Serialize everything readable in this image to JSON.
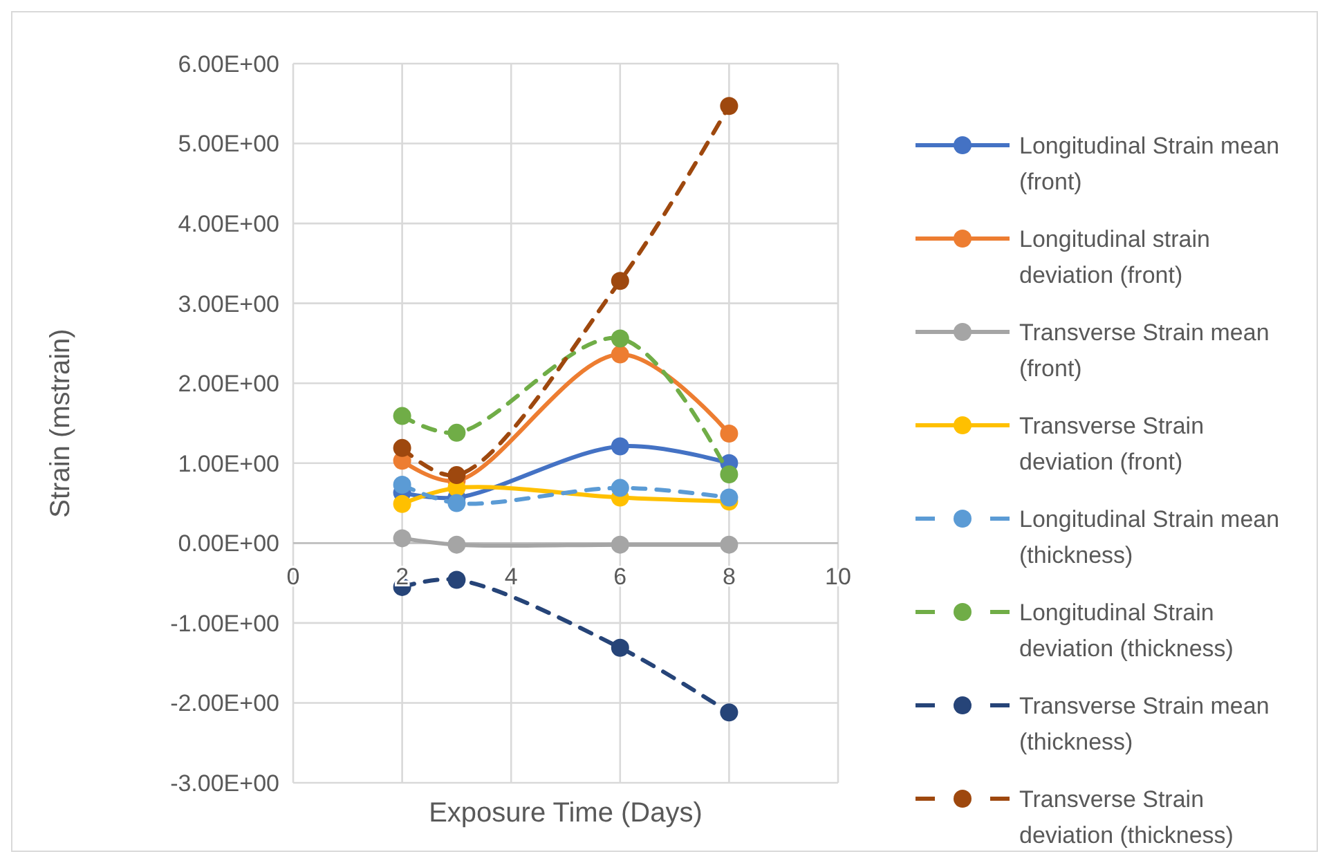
{
  "chart_data": {
    "type": "line",
    "xlabel": "Exposure Time (Days)",
    "ylabel": "Strain (mstrain)",
    "x": [
      2,
      3,
      6,
      8
    ],
    "xlim": [
      0,
      10
    ],
    "xticks": [
      0,
      2,
      4,
      6,
      8,
      10
    ],
    "ylim": [
      -3,
      6
    ],
    "yticks": [
      {
        "value": -3,
        "label": "-3.00E+00"
      },
      {
        "value": -2,
        "label": "-2.00E+00"
      },
      {
        "value": -1,
        "label": "-1.00E+00"
      },
      {
        "value": 0,
        "label": "0.00E+00"
      },
      {
        "value": 1,
        "label": "1.00E+00"
      },
      {
        "value": 2,
        "label": "2.00E+00"
      },
      {
        "value": 3,
        "label": "3.00E+00"
      },
      {
        "value": 4,
        "label": "4.00E+00"
      },
      {
        "value": 5,
        "label": "5.00E+00"
      },
      {
        "value": 6,
        "label": "6.00E+00"
      }
    ],
    "grid": true,
    "legend": "right",
    "marker": "circle",
    "series": [
      {
        "name": "Longitudinal Strain mean (front)",
        "color": "#4472c4",
        "line_style": "solid",
        "values": [
          0.63,
          0.57,
          1.21,
          1.0
        ]
      },
      {
        "name": "Longitudinal strain deviation (front)",
        "color": "#ed7d31",
        "line_style": "solid",
        "values": [
          1.03,
          0.78,
          2.36,
          1.37
        ]
      },
      {
        "name": "Transverse Strain mean (front)",
        "color": "#a5a5a5",
        "line_style": "solid",
        "values": [
          0.06,
          -0.02,
          -0.02,
          -0.02
        ]
      },
      {
        "name": "Transverse Strain deviation (front)",
        "color": "#ffc000",
        "line_style": "solid",
        "values": [
          0.49,
          0.69,
          0.57,
          0.52
        ]
      },
      {
        "name": "Longitudinal Strain mean (thickness)",
        "color": "#5b9bd5",
        "line_style": "dashed",
        "values": [
          0.73,
          0.5,
          0.69,
          0.57
        ]
      },
      {
        "name": "Longitudinal Strain deviation (thickness)",
        "color": "#70ad47",
        "line_style": "dashed",
        "values": [
          1.59,
          1.38,
          2.56,
          0.86
        ]
      },
      {
        "name": "Transverse Strain mean (thickness)",
        "color": "#264478",
        "line_style": "dashed",
        "values": [
          -0.55,
          -0.46,
          -1.31,
          -2.12
        ]
      },
      {
        "name": "Transverse Strain deviation (thickness)",
        "color": "#9e480e",
        "line_style": "dashed",
        "values": [
          1.19,
          0.85,
          3.28,
          5.47
        ]
      }
    ]
  }
}
